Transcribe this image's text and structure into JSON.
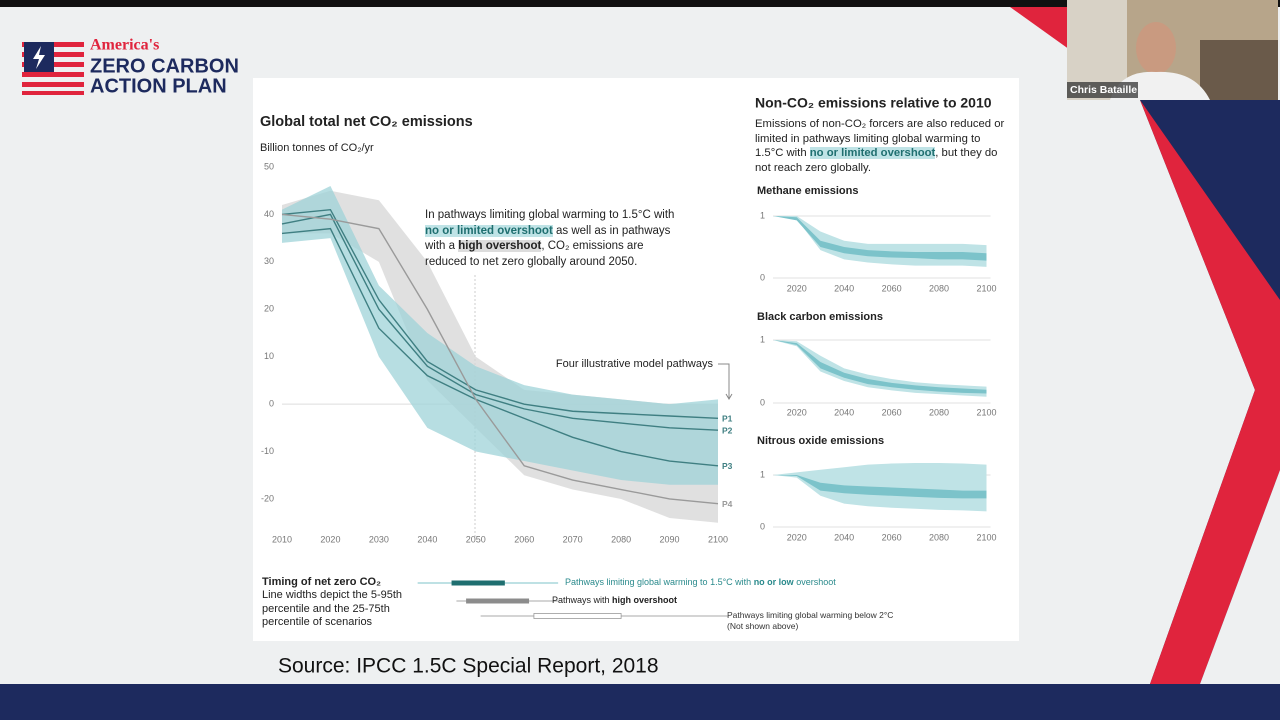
{
  "presenter": {
    "name": "Chris Bataille"
  },
  "logo": {
    "line1": "America's",
    "line2": "ZERO CARBON",
    "line3": "ACTION PLAN"
  },
  "source": "Source: IPCC 1.5C Special Report, 2018",
  "annotation": [
    "In pathways limiting global warming to 1.5°C with ",
    "no or limited overshoot",
    " as well as in pathways with a ",
    "high overshoot",
    ", CO₂ emissions are reduced to net zero globally around 2050."
  ],
  "pathways_note": "Four illustrative model pathways",
  "right_title": "Non-CO₂ emissions relative to 2010",
  "right_text": [
    "Emissions of non-CO₂ forcers are also reduced or limited in pathways limiting global warming to 1.5°C with ",
    "no or limited overshoot",
    ", but they do not reach zero globally."
  ],
  "timing": {
    "title": "Timing of net zero CO₂",
    "text": "Line widths depict the 5-95th percentile and the 25-75th percentile of scenarios",
    "items": [
      {
        "text": [
          "Pathways limiting global warming to 1.5°C with ",
          "no or low",
          " overshoot"
        ],
        "range": [
          2038,
          2067
        ],
        "iqr": [
          2045,
          2056
        ],
        "color": "#1f6f70"
      },
      {
        "text": [
          "Pathways with ",
          "high overshoot"
        ],
        "range": [
          2046,
          2067
        ],
        "iqr": [
          2048,
          2061
        ],
        "color": "#8c8c8c"
      },
      {
        "text": [
          "Pathways limiting global warming below 2°C",
          "(Not shown above)"
        ],
        "range": [
          2051,
          2102
        ],
        "iqr": [
          2062,
          2080
        ],
        "color": "#9a9a9a"
      }
    ]
  },
  "chart_data": [
    {
      "type": "line",
      "title": "Global total net CO₂ emissions",
      "y_label": "Billion tonnes of CO₂/yr",
      "x": [
        2010,
        2020,
        2030,
        2040,
        2050,
        2060,
        2070,
        2080,
        2090,
        2100
      ],
      "xlim": [
        2010,
        2100
      ],
      "xticks": [
        2010,
        2020,
        2030,
        2040,
        2050,
        2060,
        2070,
        2080,
        2090,
        2100
      ],
      "ylim": [
        -25,
        50
      ],
      "yticks": [
        50,
        40,
        30,
        20,
        10,
        0,
        -10,
        -20
      ],
      "grid": false,
      "bands": [
        {
          "color": "#d6d6d6",
          "upper": [
            42,
            45,
            43,
            30,
            10,
            3,
            2,
            1,
            0,
            0
          ],
          "lower": [
            36,
            36,
            30,
            5,
            -5,
            -15,
            -18,
            -20,
            -24,
            -25
          ]
        },
        {
          "color": "#9fd3d8",
          "upper": [
            41,
            46,
            25,
            15,
            8,
            4,
            2,
            1,
            0,
            1
          ],
          "lower": [
            34,
            35,
            10,
            -5,
            -10,
            -12,
            -14,
            -16,
            -17,
            -17
          ]
        }
      ],
      "series": [
        {
          "name": "P1",
          "color": "#3f7f82",
          "values": [
            40,
            41,
            22,
            9,
            3,
            0,
            -1.5,
            -2,
            -2.5,
            -3
          ]
        },
        {
          "name": "P2",
          "color": "#3f7f82",
          "values": [
            38,
            40,
            20,
            8,
            2,
            -1,
            -3,
            -4,
            -5,
            -5.5
          ]
        },
        {
          "name": "P3",
          "color": "#3f7f82",
          "values": [
            36,
            37,
            16,
            6,
            1,
            -3,
            -7,
            -10,
            -12,
            -13
          ]
        },
        {
          "name": "P4",
          "color": "#9a9a9a",
          "values": [
            40,
            39,
            37,
            20,
            1,
            -13,
            -16,
            -18,
            -20,
            -21
          ]
        }
      ]
    },
    {
      "type": "band",
      "title": "Methane emissions",
      "x": [
        2010,
        2020,
        2030,
        2040,
        2050,
        2060,
        2070,
        2080,
        2090,
        2100
      ],
      "xlim": [
        2010,
        2100
      ],
      "xticks": [
        2020,
        2040,
        2060,
        2080,
        2100
      ],
      "ylim": [
        0,
        1.25
      ],
      "yticks": [
        0,
        1
      ],
      "grid": true,
      "bands": [
        {
          "color": "#bfe3e6",
          "upper": [
            1,
            1,
            0.75,
            0.6,
            0.55,
            0.55,
            0.55,
            0.55,
            0.55,
            0.53
          ],
          "lower": [
            1,
            0.95,
            0.45,
            0.3,
            0.25,
            0.22,
            0.2,
            0.2,
            0.2,
            0.18
          ]
        },
        {
          "color": "#7cc3ca",
          "upper": [
            1,
            0.98,
            0.6,
            0.5,
            0.45,
            0.43,
            0.42,
            0.42,
            0.42,
            0.4
          ],
          "lower": [
            1,
            0.93,
            0.5,
            0.4,
            0.35,
            0.33,
            0.32,
            0.3,
            0.3,
            0.28
          ]
        }
      ]
    },
    {
      "type": "band",
      "title": "Black carbon emissions",
      "x": [
        2010,
        2020,
        2030,
        2040,
        2050,
        2060,
        2070,
        2080,
        2090,
        2100
      ],
      "xlim": [
        2010,
        2100
      ],
      "xticks": [
        2020,
        2040,
        2060,
        2080,
        2100
      ],
      "ylim": [
        0,
        1.25
      ],
      "yticks": [
        0,
        1
      ],
      "grid": true,
      "bands": [
        {
          "color": "#bfe3e6",
          "upper": [
            1,
            0.98,
            0.75,
            0.55,
            0.45,
            0.38,
            0.33,
            0.3,
            0.28,
            0.26
          ],
          "lower": [
            1,
            0.9,
            0.5,
            0.35,
            0.25,
            0.2,
            0.16,
            0.14,
            0.12,
            0.1
          ]
        },
        {
          "color": "#7cc3ca",
          "upper": [
            1,
            0.95,
            0.65,
            0.48,
            0.38,
            0.32,
            0.28,
            0.25,
            0.23,
            0.21
          ],
          "lower": [
            1,
            0.92,
            0.55,
            0.4,
            0.3,
            0.25,
            0.21,
            0.18,
            0.16,
            0.15
          ]
        }
      ]
    },
    {
      "type": "band",
      "title": "Nitrous oxide emissions",
      "x": [
        2010,
        2020,
        2030,
        2040,
        2050,
        2060,
        2070,
        2080,
        2090,
        2100
      ],
      "xlim": [
        2010,
        2100
      ],
      "xticks": [
        2020,
        2040,
        2060,
        2080,
        2100
      ],
      "ylim": [
        0,
        1.25
      ],
      "yticks": [
        0,
        1
      ],
      "grid": true,
      "bands": [
        {
          "color": "#bfe3e6",
          "upper": [
            1,
            1.05,
            1.1,
            1.15,
            1.2,
            1.22,
            1.23,
            1.23,
            1.22,
            1.2
          ],
          "lower": [
            1,
            0.95,
            0.6,
            0.45,
            0.4,
            0.37,
            0.35,
            0.33,
            0.32,
            0.3
          ]
        },
        {
          "color": "#7cc3ca",
          "upper": [
            1,
            1,
            0.85,
            0.8,
            0.78,
            0.76,
            0.74,
            0.72,
            0.7,
            0.7
          ],
          "lower": [
            1,
            0.98,
            0.7,
            0.65,
            0.62,
            0.6,
            0.58,
            0.56,
            0.55,
            0.55
          ]
        }
      ]
    }
  ]
}
